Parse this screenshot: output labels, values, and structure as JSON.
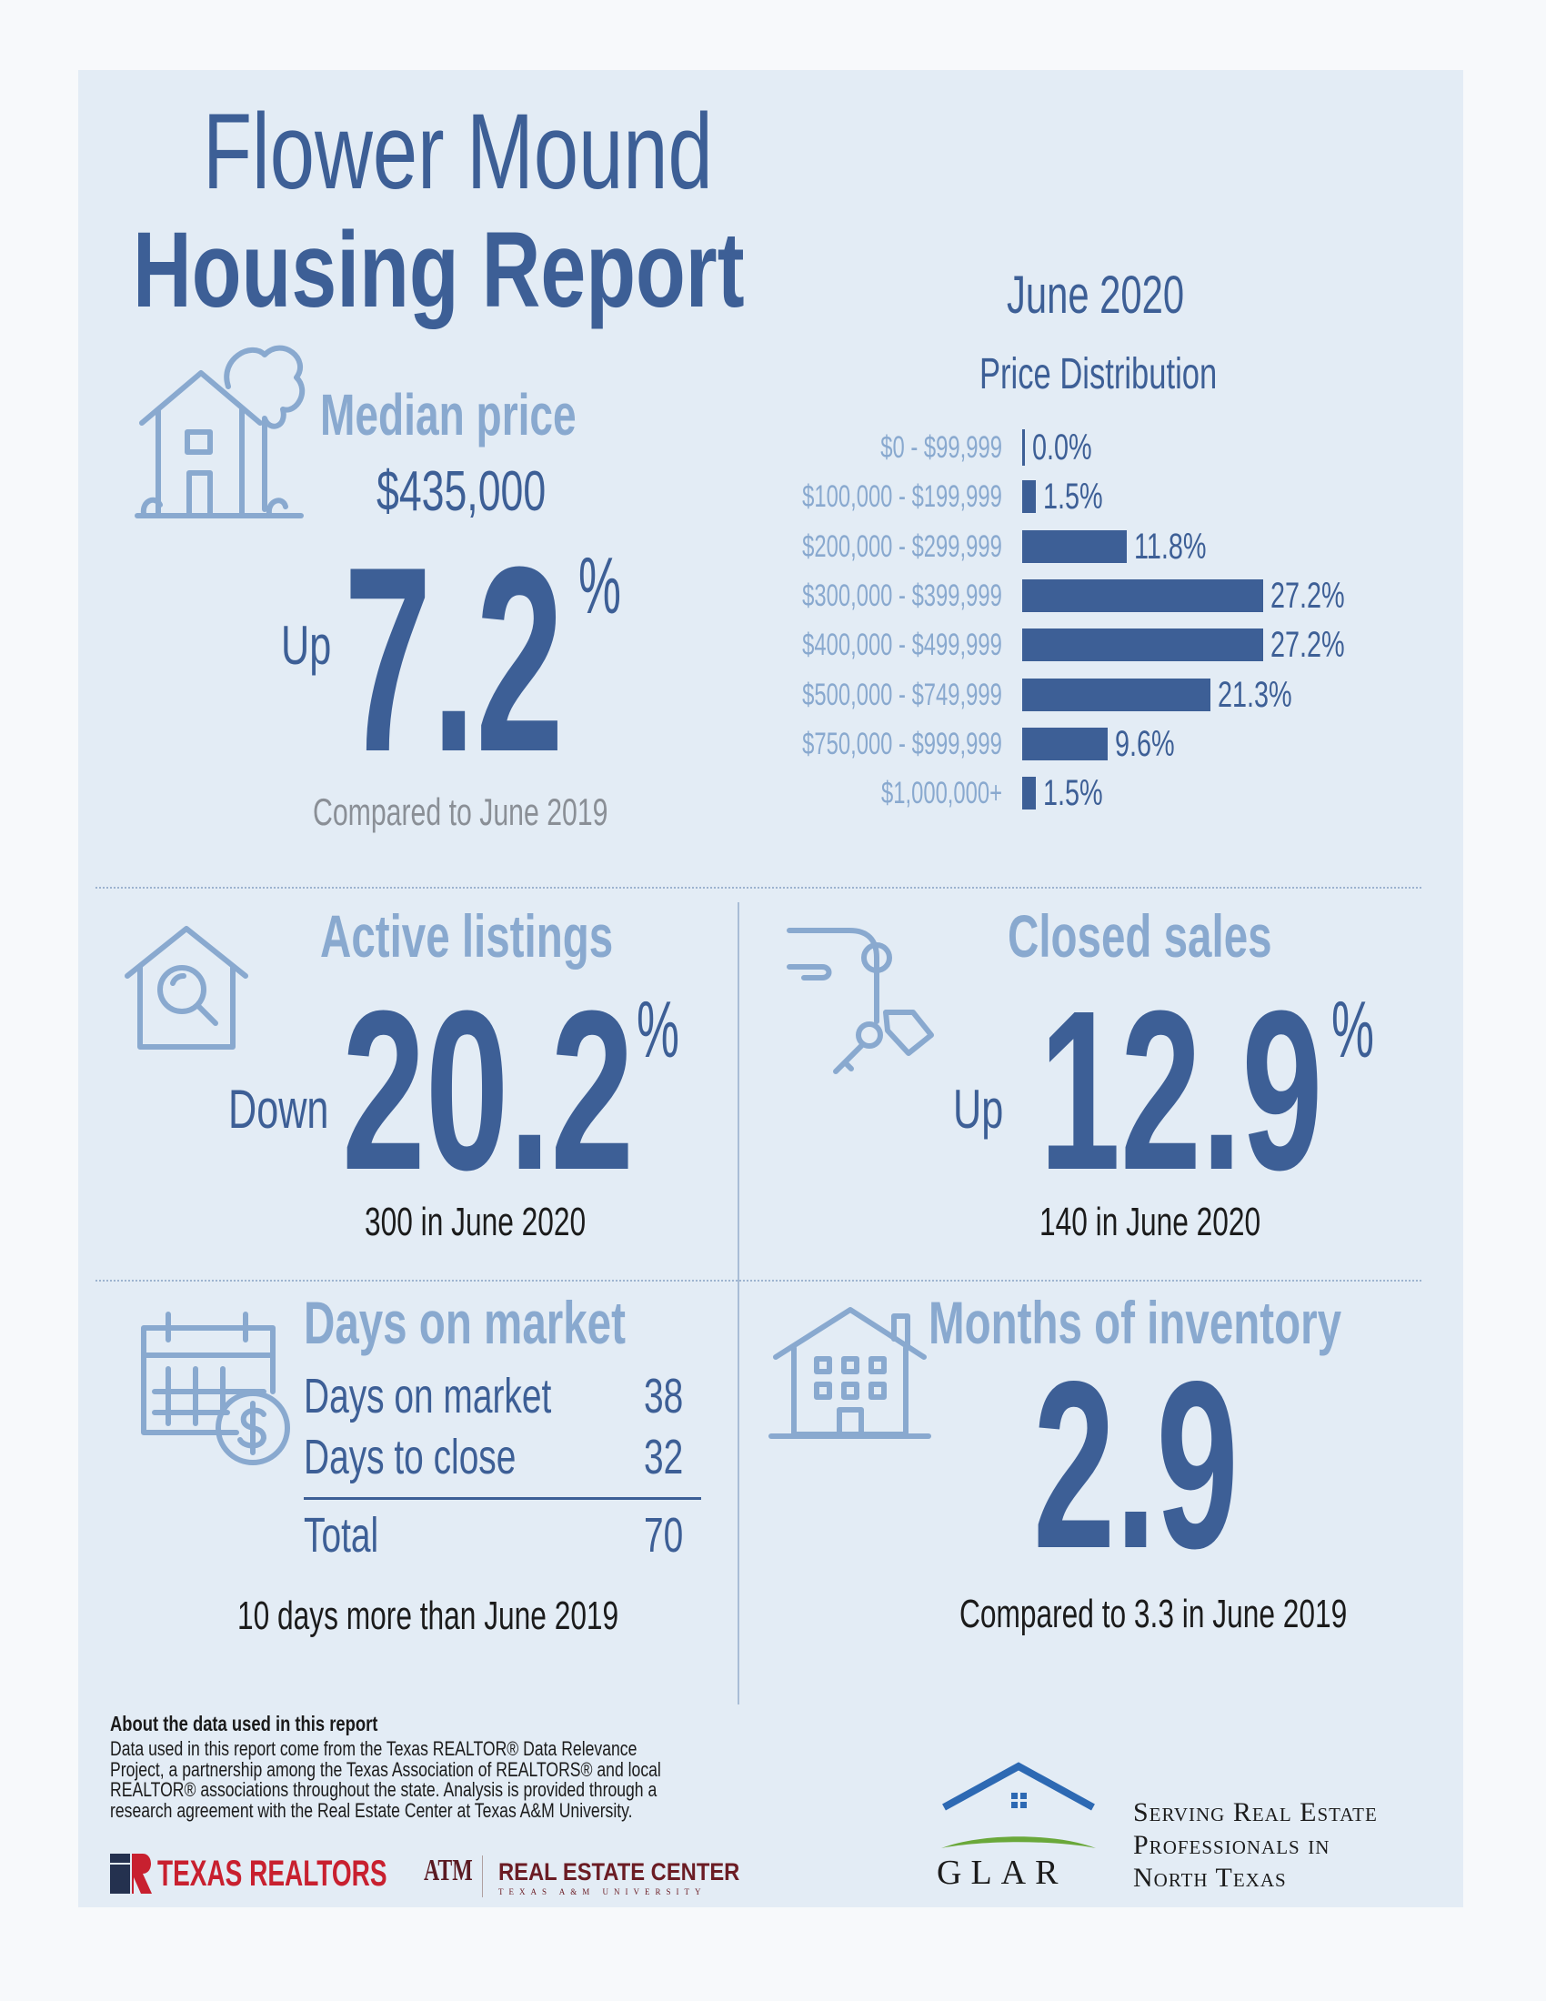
{
  "header": {
    "title_line1": "Flower Mound",
    "title_line2": "Housing Report",
    "period": "June 2020"
  },
  "colors": {
    "dark_blue": "#3d5f96",
    "light_blue": "#89a9cf",
    "background": "#e3ecf5"
  },
  "median_price": {
    "heading": "Median price",
    "value": "$435,000",
    "direction": "Up",
    "change": "7.2",
    "unit": "%",
    "comparison": "Compared to June 2019",
    "icon": "house-tree-icon"
  },
  "active_listings": {
    "heading": "Active listings",
    "direction": "Down",
    "change": "20.2",
    "unit": "%",
    "detail": "300 in June 2020",
    "icon": "house-search-icon"
  },
  "closed_sales": {
    "heading": "Closed sales",
    "direction": "Up",
    "change": "12.9",
    "unit": "%",
    "detail": "140 in June 2020",
    "icon": "hand-keys-icon"
  },
  "days_on_market": {
    "heading": "Days on market",
    "rows": [
      {
        "label": "Days on market",
        "value": "38"
      },
      {
        "label": "Days to close",
        "value": "32"
      }
    ],
    "total_label": "Total",
    "total_value": "70",
    "detail": "10 days more than June 2019",
    "icon": "calendar-dollar-icon"
  },
  "months_inventory": {
    "heading": "Months of inventory",
    "value": "2.9",
    "detail": "Compared to 3.3 in June 2019",
    "icon": "building-icon"
  },
  "chart_data": {
    "type": "bar",
    "orientation": "horizontal",
    "title": "Price Distribution",
    "categories": [
      "$0 - $99,999",
      "$100,000 - $199,999",
      "$200,000 - $299,999",
      "$300,000 - $399,999",
      "$400,000 - $499,999",
      "$500,000 - $749,999",
      "$750,000 - $999,999",
      "$1,000,000+"
    ],
    "values": [
      0.0,
      1.5,
      11.8,
      27.2,
      27.2,
      21.3,
      9.6,
      1.5
    ],
    "data_labels": [
      "0.0%",
      "1.5%",
      "11.8%",
      "27.2%",
      "27.2%",
      "21.3%",
      "9.6%",
      "1.5%"
    ],
    "grid": false
  },
  "footer": {
    "about_title": "About the data used in this report",
    "about_body": "Data used in this report come from the Texas REALTOR® Data Relevance Project, a partnership among the Texas Association of REALTORS® and local REALTOR® associations throughout the state. Analysis is provided through a research agreement with the Real Estate Center at Texas A&M University.",
    "logo_texas_realtors": "TEXAS REALTORS",
    "logo_atm": "ATM",
    "logo_rec": "REAL ESTATE CENTER",
    "logo_rec_sub": "TEXAS A&M UNIVERSITY",
    "glar": "GLAR",
    "glar_tagline_1": "Serving Real Estate",
    "glar_tagline_2": "Professionals in",
    "glar_tagline_3": "North Texas"
  }
}
